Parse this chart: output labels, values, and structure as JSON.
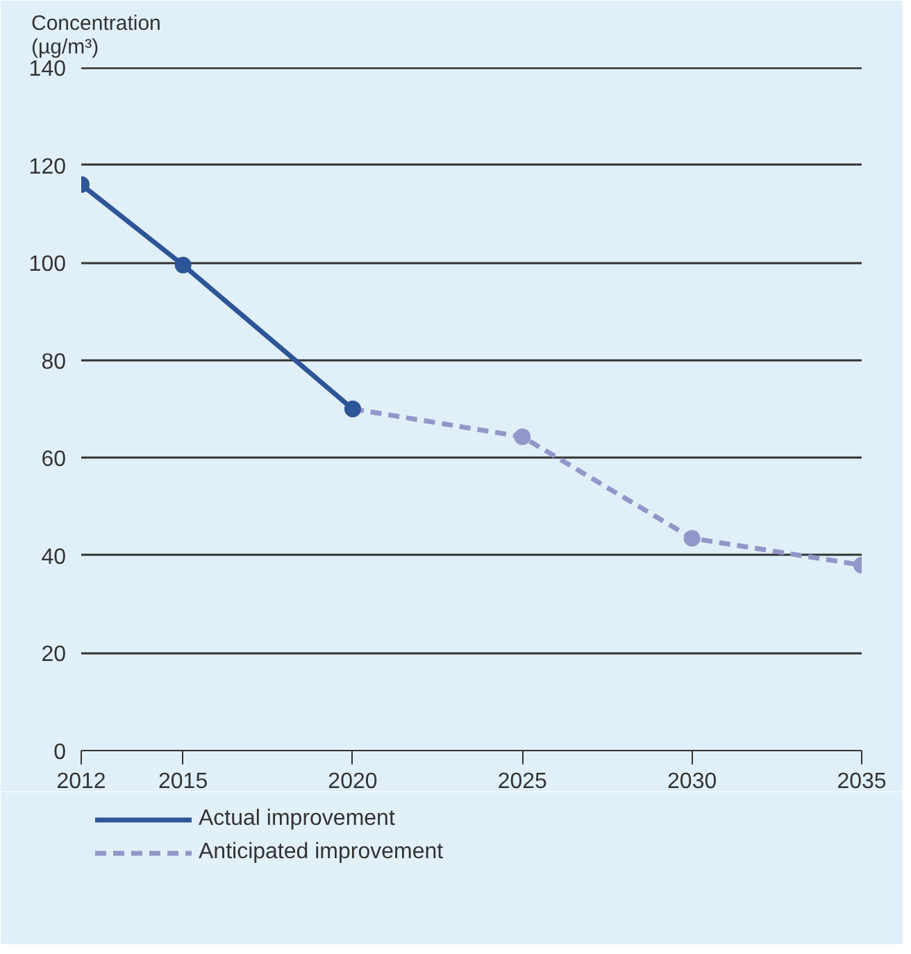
{
  "chart_data": {
    "type": "line",
    "ylabel": "Concentration (µg/m³)",
    "series": [
      {
        "name": "Actual improvement",
        "color": "#2d5597",
        "x": [
          2012,
          2015,
          2020
        ],
        "values": [
          116,
          99.5,
          70
        ],
        "line_style": "solid"
      },
      {
        "name": "Anticipated improvement",
        "color": "#9396c8",
        "x": [
          2020,
          2025,
          2030,
          2035
        ],
        "values": [
          70,
          64.3,
          43.5,
          38
        ],
        "line_style": "dashed"
      }
    ],
    "xlim": [
      2012,
      2035
    ],
    "xticks": [
      2012,
      2015,
      2020,
      2025,
      2030,
      2035
    ],
    "ylim": [
      0,
      140
    ],
    "yticks": [
      0,
      20,
      40,
      60,
      80,
      100,
      120,
      140
    ],
    "grid": "y",
    "legend": "bottom left",
    "marker": "circle"
  }
}
